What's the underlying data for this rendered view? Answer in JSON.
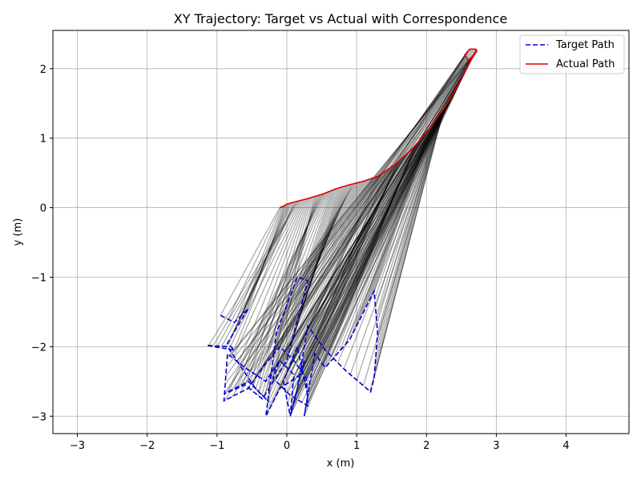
{
  "chart_data": {
    "type": "line",
    "title": "XY Trajectory: Target vs Actual with Correspondence",
    "xlabel": "x (m)",
    "ylabel": "y (m)",
    "xlim": [
      -3.35,
      4.9
    ],
    "ylim": [
      -3.25,
      2.55
    ],
    "xticks": [
      -3,
      -2,
      -1,
      0,
      1,
      2,
      3,
      4
    ],
    "yticks": [
      -3,
      -2,
      -1,
      0,
      1,
      2
    ],
    "xtick_labels": [
      "−3",
      "−2",
      "−1",
      "0",
      "1",
      "2",
      "3",
      "4"
    ],
    "ytick_labels": [
      "−3",
      "−2",
      "−1",
      "0",
      "1",
      "2"
    ],
    "grid": true,
    "legend": "top-right",
    "series": [
      {
        "name": "Target Path",
        "color": "#0000cc",
        "style": "dashed",
        "x": [
          -0.95,
          -0.75,
          -0.55,
          -0.85,
          -0.75,
          -1.15,
          -0.85,
          -0.45,
          -0.25,
          -0.55,
          -0.9,
          -0.6,
          -0.35,
          0.0,
          0.3,
          0.15,
          -0.15,
          -0.3,
          -0.1,
          0.2,
          0.25,
          0.05,
          -0.05,
          0.15,
          0.3,
          0.25,
          0.4,
          0.55,
          0.9,
          1.25,
          1.3,
          1.25,
          1.2,
          0.85,
          0.55,
          0.3,
          0.15,
          0.05,
          0.1,
          -0.1,
          -0.2,
          0.05,
          0.3,
          0.28,
          0.1,
          -0.1,
          -0.35,
          -0.55,
          -0.75,
          -0.9,
          -0.85,
          -0.6,
          -0.3,
          -0.1
        ],
        "y": [
          -1.55,
          -1.65,
          -1.45,
          -1.95,
          -2.05,
          -1.98,
          -2.0,
          -2.6,
          -2.8,
          -2.5,
          -2.68,
          -2.55,
          -2.75,
          -2.2,
          -1.05,
          -1.0,
          -1.8,
          -3.0,
          -2.6,
          -2.4,
          -2.2,
          -3.0,
          -2.5,
          -2.0,
          -2.7,
          -3.0,
          -2.1,
          -2.3,
          -1.9,
          -1.2,
          -1.8,
          -2.45,
          -2.65,
          -2.35,
          -2.05,
          -1.7,
          -2.6,
          -3.0,
          -2.4,
          -2.2,
          -2.45,
          -2.7,
          -2.85,
          -2.45,
          -2.2,
          -2.0,
          -2.3,
          -2.6,
          -2.7,
          -2.78,
          -2.1,
          -2.3,
          -2.5,
          -2.2
        ]
      },
      {
        "name": "Actual Path",
        "color": "#dd0000",
        "style": "solid",
        "x": [
          -0.1,
          -0.08,
          -0.05,
          0.0,
          0.1,
          0.3,
          0.5,
          0.7,
          0.9,
          1.1,
          1.3,
          1.55,
          1.8,
          2.05,
          2.3,
          2.5,
          2.65,
          2.72,
          2.7,
          2.62,
          2.55,
          2.6,
          2.68,
          2.72
        ],
        "y": [
          0.0,
          0.01,
          0.02,
          0.05,
          0.08,
          0.13,
          0.19,
          0.27,
          0.33,
          0.38,
          0.45,
          0.62,
          0.85,
          1.15,
          1.5,
          1.85,
          2.15,
          2.25,
          2.28,
          2.28,
          2.2,
          2.12,
          2.2,
          2.28
        ]
      }
    ],
    "correspondence_lines": {
      "color": "#000000",
      "opacity": 0.35,
      "description_count": 200
    }
  }
}
